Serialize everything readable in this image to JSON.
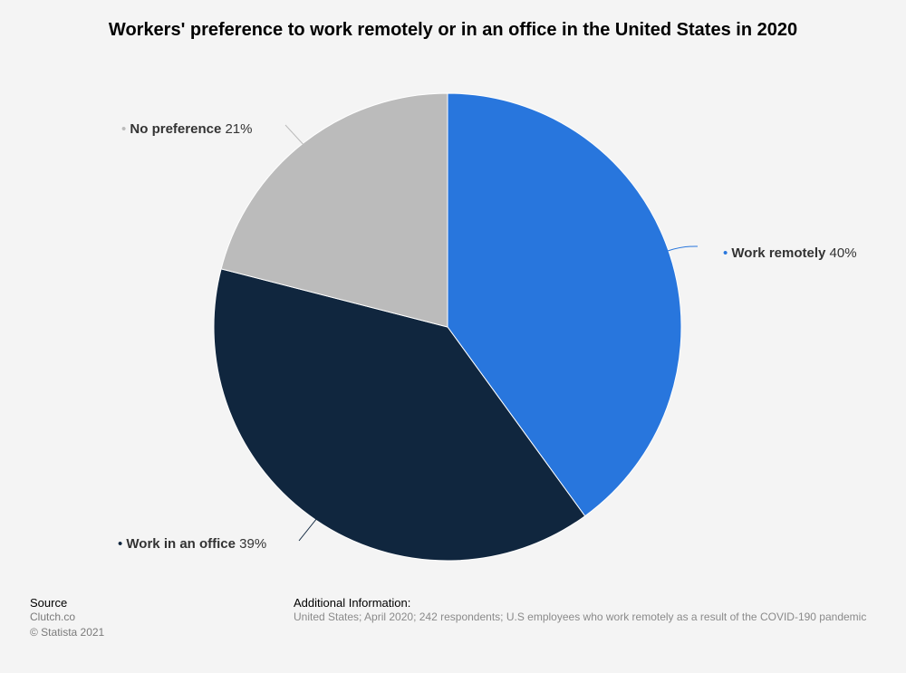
{
  "chart_data": {
    "type": "pie",
    "title": "Workers' preference to work remotely or in an office in the United States in 2020",
    "slices": [
      {
        "label": "Work remotely",
        "value": 40,
        "value_text": "40%",
        "color": "#2876dd"
      },
      {
        "label": "Work in an office",
        "value": 39,
        "value_text": "39%",
        "color": "#10263e"
      },
      {
        "label": "No preference",
        "value": 21,
        "value_text": "21%",
        "color": "#bbbbbb"
      }
    ]
  },
  "footer": {
    "source_title": "Source",
    "source_name": "Clutch.co",
    "copyright": "© Statista 2021",
    "info_title": "Additional Information:",
    "info_text": "United States; April 2020; 242 respondents; U.S employees who work remotely as a result of the COVID-190 pandemic"
  }
}
